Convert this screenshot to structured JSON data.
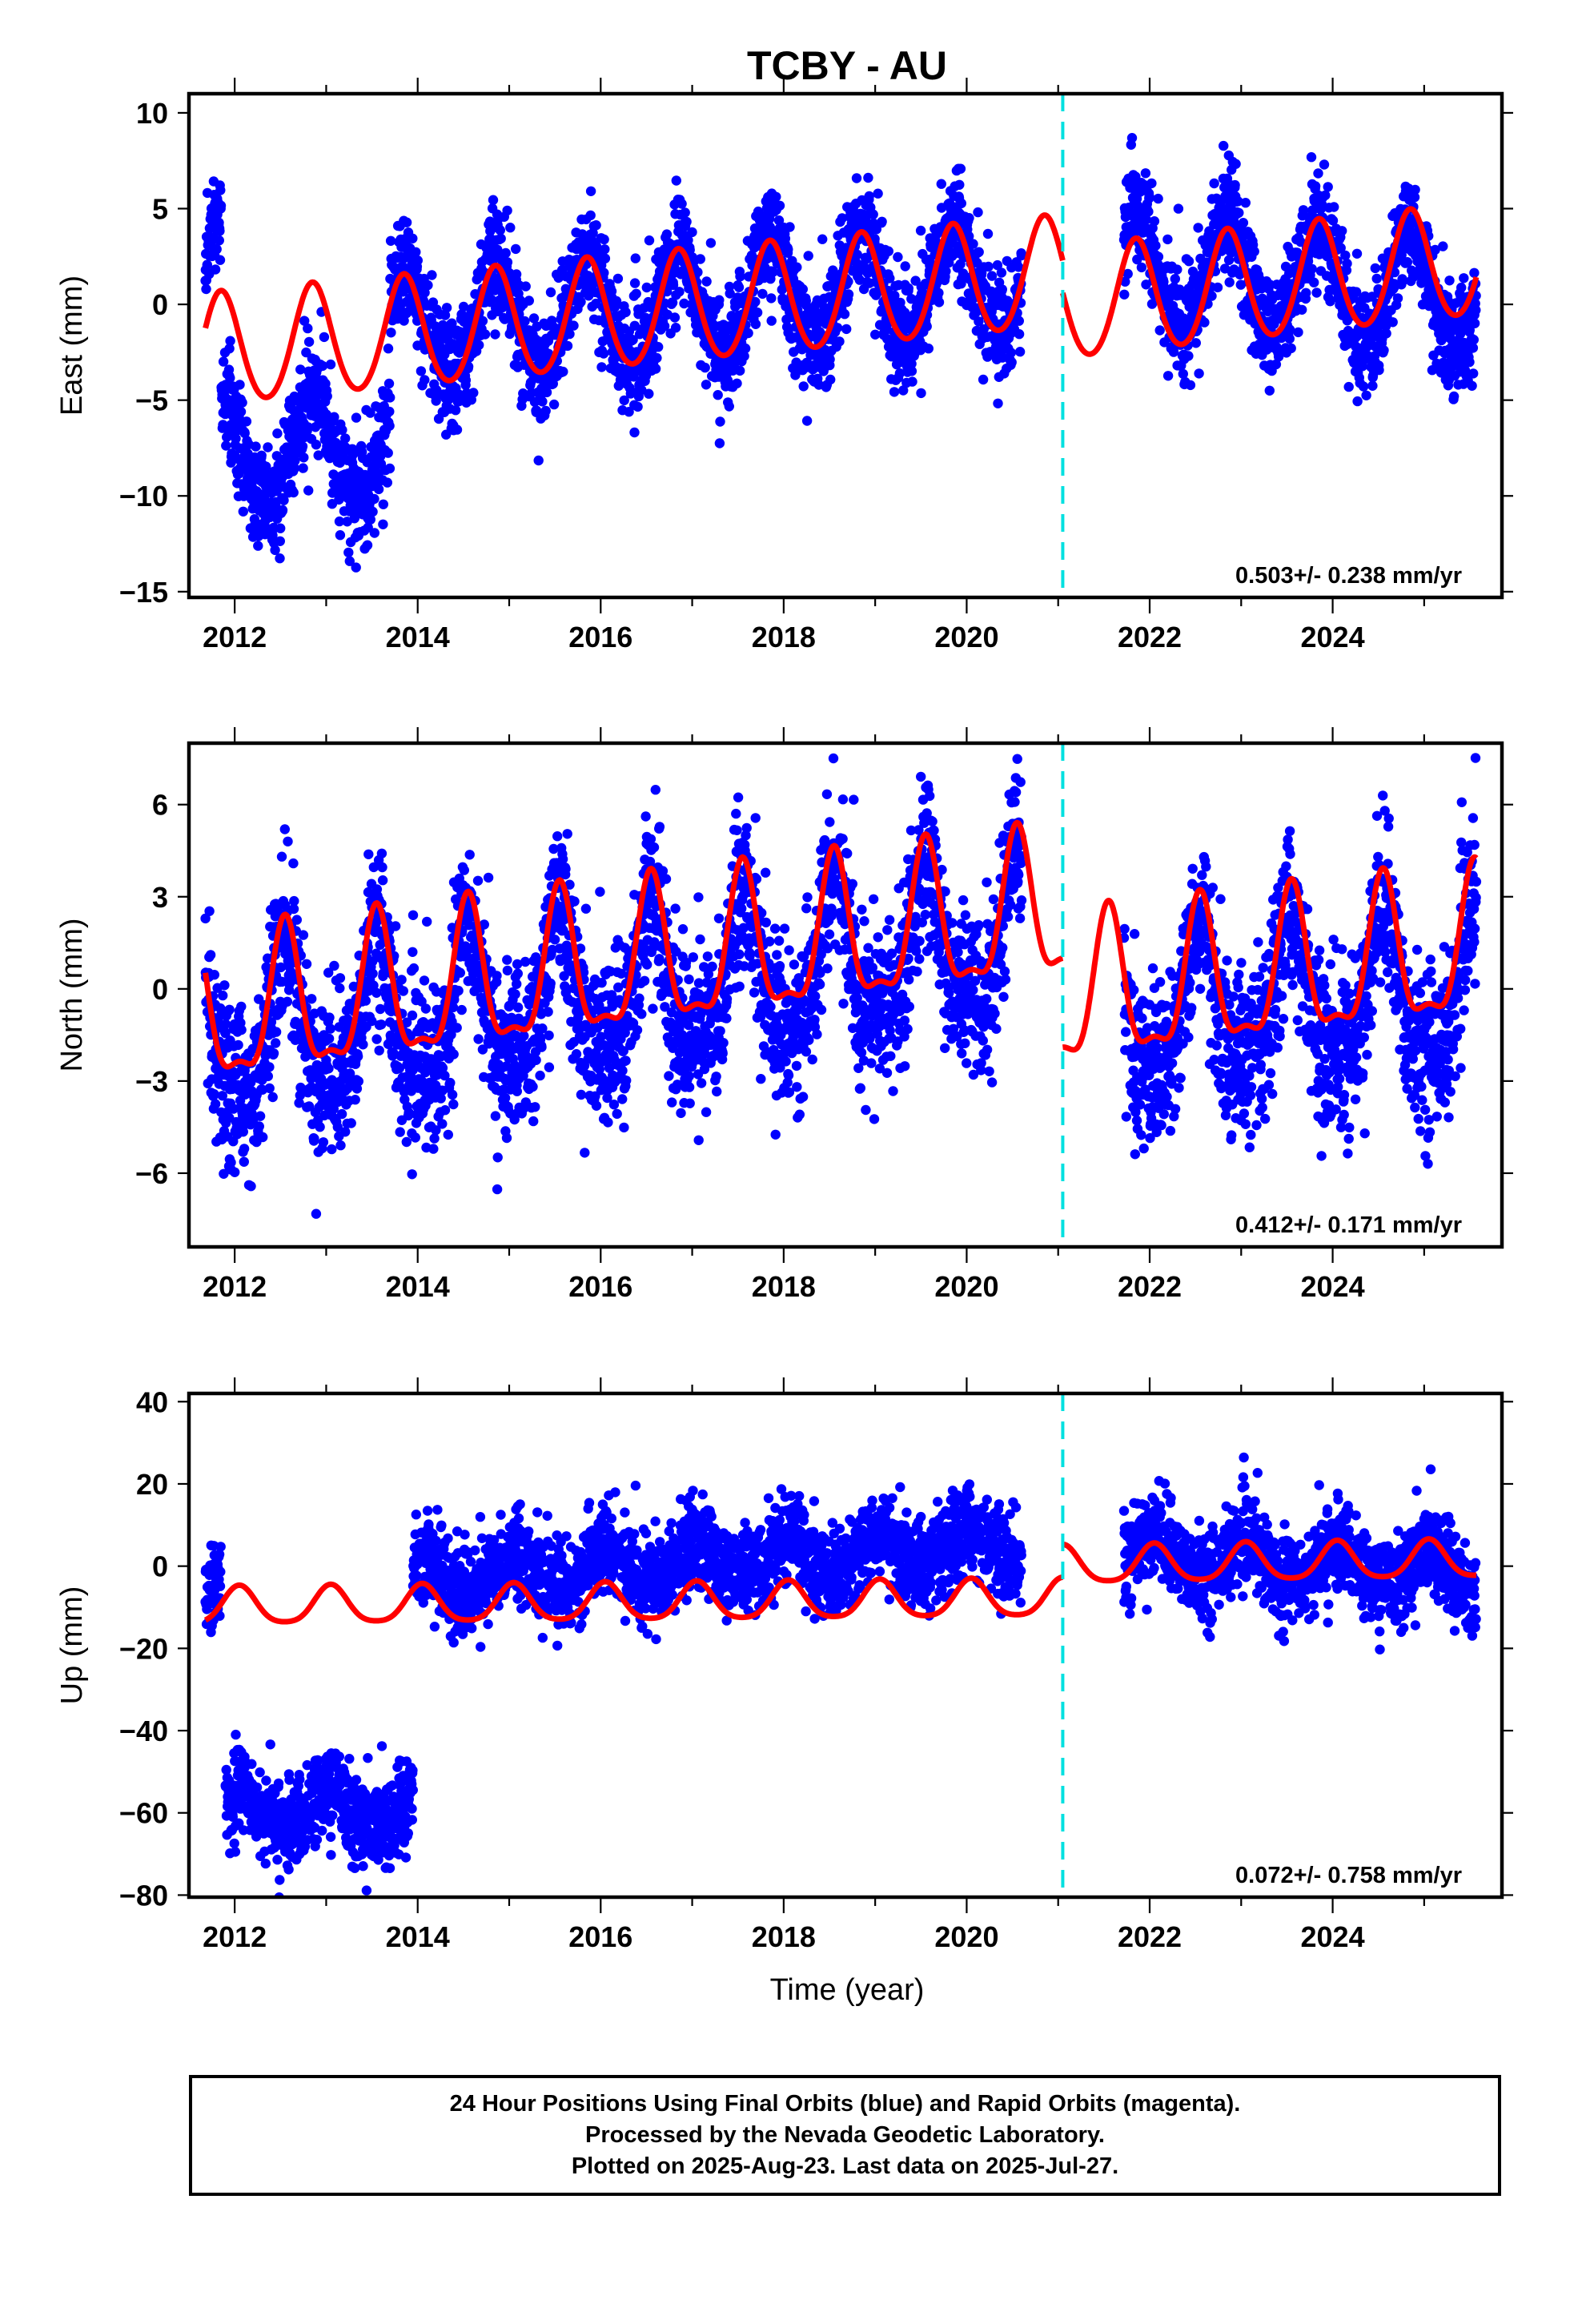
{
  "chart_data": {
    "type": "scatter",
    "title": "TCBY - AU",
    "xlabel": "Time (year)",
    "x_ticks": [
      2012,
      2014,
      2016,
      2018,
      2020,
      2022,
      2024
    ],
    "xlim": [
      2011.5,
      2025.85
    ],
    "offset_line": {
      "x": 2021.05,
      "color": "#00e0e0",
      "style": "dashed"
    },
    "colors": {
      "points": "#0000ff",
      "fit": "#ff0000"
    },
    "data_start": 2011.68,
    "data_end": 2025.57,
    "gaps": [
      [
        2020.6,
        2021.0
      ],
      [
        2021.0,
        2021.72
      ]
    ],
    "panels": [
      {
        "ylabel": "East (mm)",
        "ylim": [
          -15.3,
          11
        ],
        "y_ticks": [
          10,
          5,
          0,
          -5,
          -10,
          -15
        ],
        "rate": "0.503+/- 0.238 mm/yr",
        "annual_amplitude": 2.9,
        "annual_phase_peak": 0.85,
        "semiannual_amplitude": 0.25,
        "noise_sd": 1.4,
        "segments": [
          {
            "start": 2011.68,
            "end": 2011.85,
            "mean_start": 1.5,
            "mean_end": 1.5,
            "fit_start": -2.2,
            "fit_end": -1.0
          },
          {
            "start": 2011.85,
            "end": 2013.7,
            "mean_start": -8.0,
            "mean_end": -7.2,
            "fit_start": -0.9,
            "fit_end": -5.0
          },
          {
            "start": 2013.7,
            "end": 2020.6,
            "mean_start": -1.5,
            "mean_end": 1.5,
            "fit_start": -2.5,
            "fit_end": 1.0
          },
          {
            "start": 2021.72,
            "end": 2025.57,
            "mean_start": 1.8,
            "mean_end": 0.5,
            "fit_start": 0.0,
            "fit_end": 2.0
          }
        ],
        "fit_segments": [
          {
            "start": 2011.68,
            "end": 2021.05,
            "base_start": -2.5,
            "base_end": 1.6
          },
          {
            "start": 2021.05,
            "end": 2025.57,
            "base_start": -0.1,
            "base_end": 2.2
          }
        ]
      },
      {
        "ylabel": "North (mm)",
        "ylim": [
          -8.4,
          8
        ],
        "y_ticks": [
          6,
          3,
          0,
          -3,
          -6
        ],
        "rate": "0.412+/- 0.171 mm/yr",
        "annual_amplitude": 2.3,
        "annual_phase_peak": 0.55,
        "semiannual_amplitude": 0.8,
        "noise_sd": 1.3,
        "segments": [
          {
            "start": 2011.68,
            "end": 2020.6,
            "mean_start": -1.8,
            "mean_end": 1.5
          },
          {
            "start": 2021.72,
            "end": 2025.57,
            "mean_start": -0.8,
            "mean_end": -0.2
          }
        ],
        "fit_segments": [
          {
            "start": 2011.68,
            "end": 2021.05,
            "base_start": -1.0,
            "base_end": 2.5
          },
          {
            "start": 2021.05,
            "end": 2025.57,
            "base_start": -0.4,
            "base_end": 1.2
          }
        ]
      },
      {
        "ylabel": "Up (mm)",
        "ylim": [
          -80.5,
          42
        ],
        "y_ticks": [
          40,
          20,
          0,
          -20,
          -40,
          -60,
          -80
        ],
        "rate": "0.072+/- 0.758 mm/yr",
        "annual_amplitude": 4.5,
        "annual_phase_peak": 0.05,
        "semiannual_amplitude": 0.8,
        "noise_sd": 5.2,
        "segments": [
          {
            "start": 2011.68,
            "end": 2011.85,
            "mean_start": -3.0,
            "mean_end": -3.0
          },
          {
            "start": 2011.9,
            "end": 2013.95,
            "mean_start": -59.0,
            "mean_end": -60.0
          },
          {
            "start": 2013.95,
            "end": 2020.6,
            "mean_start": -3.0,
            "mean_end": 5.0
          },
          {
            "start": 2021.72,
            "end": 2025.57,
            "mean_start": 3.0,
            "mean_end": -2.0
          }
        ],
        "fit_segments": [
          {
            "start": 2011.68,
            "end": 2021.05,
            "base_start": -10.0,
            "base_end": -8.0
          },
          {
            "start": 2021.05,
            "end": 2025.57,
            "base_start": 0.0,
            "base_end": 1.5
          }
        ]
      }
    ]
  },
  "footer": {
    "line1": "24 Hour Positions Using Final Orbits (blue) and Rapid Orbits (magenta).",
    "line2": "Processed by the Nevada Geodetic Laboratory.",
    "line3": "Plotted on 2025-Aug-23. Last data on 2025-Jul-27."
  }
}
